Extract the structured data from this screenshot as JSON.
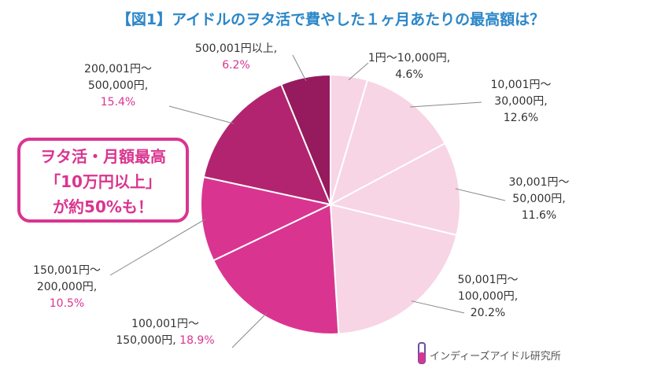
{
  "chart_data": {
    "type": "pie",
    "title": "【図1】アイドルのヲタ活で費やした１ヶ月あたりの最高額は？",
    "categories": [
      "1円〜10,000円,",
      "10,001円〜\n30,000円,",
      "30,001円〜\n50,000円,",
      "50,001円〜\n100,000円,",
      "100,001円〜\n150,000円,",
      "150,001円〜\n200,000円,",
      "200,001円〜\n500,000円,",
      "500,001円以上,"
    ],
    "values": [
      4.6,
      12.6,
      11.6,
      20.2,
      18.9,
      10.5,
      15.4,
      6.2
    ],
    "value_labels": [
      "4.6%",
      "12.6%",
      "11.6%",
      "20.2%",
      "18.9%",
      "10.5%",
      "15.4%",
      "6.2%"
    ],
    "colors": [
      "#f7d5e5",
      "#f7d5e5",
      "#f7d5e5",
      "#f7d5e5",
      "#d93590",
      "#d93590",
      "#b2246f",
      "#961a5e"
    ],
    "label_colors": [
      "#333333",
      "#333333",
      "#333333",
      "#333333",
      "#d93590",
      "#d93590",
      "#d93590",
      "#d93590"
    ],
    "annotation": "ヲタ活・月額最高\n「10万円以上」\nが約50%も！",
    "source": "インディーズアイドル研究所"
  }
}
